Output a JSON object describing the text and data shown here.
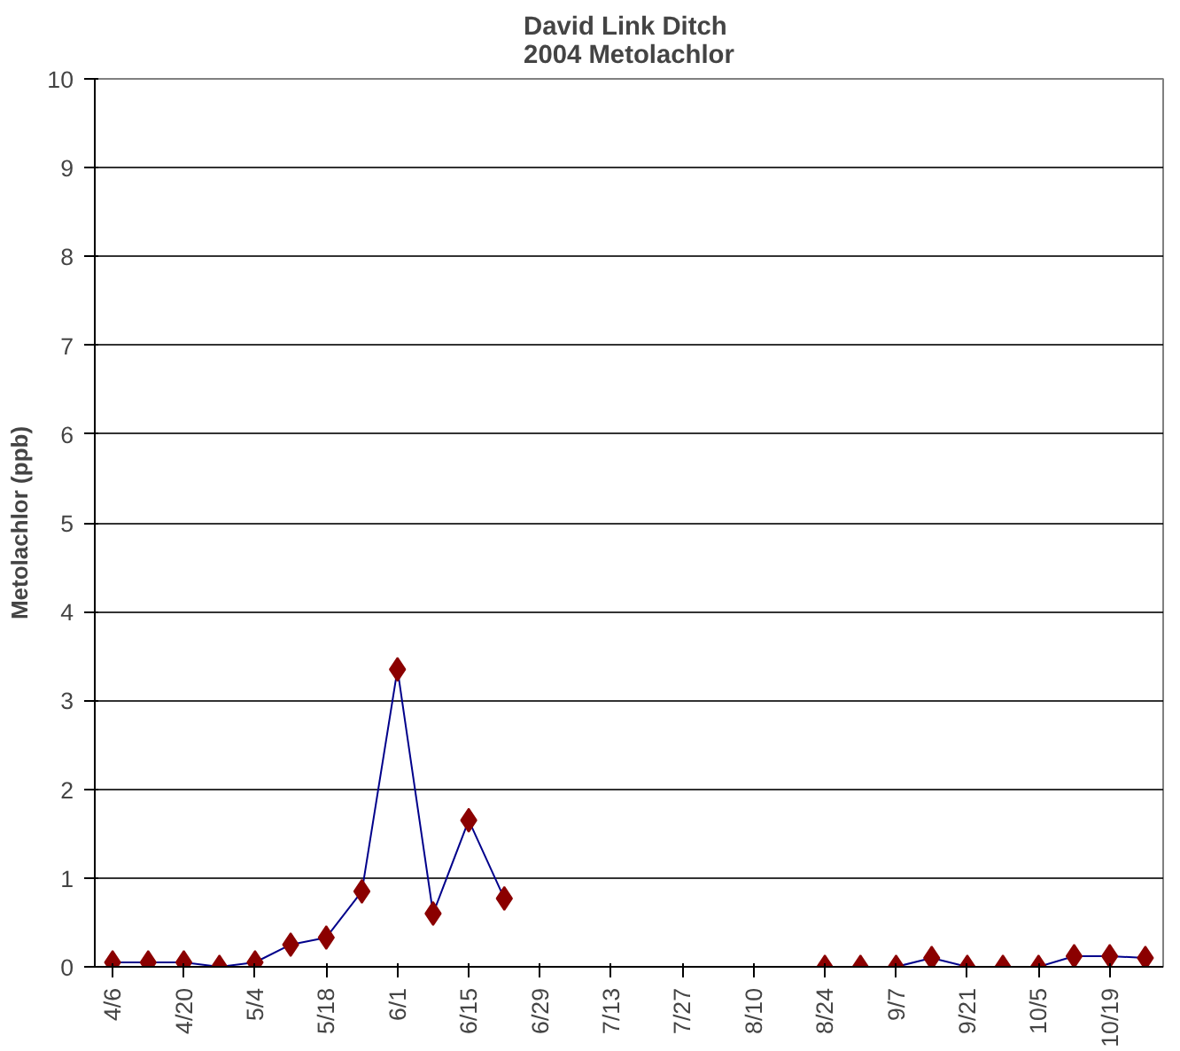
{
  "chart_data": {
    "type": "line",
    "title": "David Link Ditch\n2004 Metolachlor",
    "ylabel": "Metolachlor (ppb)",
    "categories": [
      "4/6",
      null,
      "4/20",
      null,
      "5/4",
      null,
      "5/18",
      null,
      "6/1",
      null,
      "6/15",
      null,
      "6/29",
      null,
      "7/13",
      null,
      "7/27",
      null,
      "8/10",
      null,
      "8/24",
      null,
      "9/7",
      null,
      "9/21",
      null,
      "10/5",
      null,
      "10/19",
      null
    ],
    "series": [
      {
        "color": "#00008b",
        "colors": [
          "#8b0000",
          "#8b0000",
          "#8b0000",
          "#8b0000",
          "#8b0000",
          "#8b0000",
          "#8b0000",
          "#8b0000",
          "#8b0000",
          "#8b0000",
          "#8b0000",
          "#8b0000",
          null,
          null,
          null,
          null,
          null,
          null,
          null,
          null,
          "#8b0000",
          "#8b0000",
          "#8b0000",
          "#8b0000",
          "#8b0000",
          "#8b0000",
          "#8b0000",
          "#8b0000",
          "#8b0000",
          "#8b0000"
        ],
        "values": [
          0.05,
          0.05,
          0.05,
          0,
          0.05,
          0.25,
          0.33,
          0.85,
          3.35,
          0.6,
          1.65,
          0.77,
          null,
          null,
          null,
          null,
          null,
          null,
          null,
          null,
          0,
          0,
          0,
          0.1,
          0,
          0,
          0,
          0.12,
          0.12,
          0.1
        ]
      }
    ],
    "marker": "diamond",
    "line_style": "solid",
    "ylim": [
      0,
      10
    ],
    "yticks": [
      0,
      1,
      2,
      3,
      4,
      5,
      6,
      7,
      8,
      9,
      10
    ],
    "grid": "y"
  }
}
